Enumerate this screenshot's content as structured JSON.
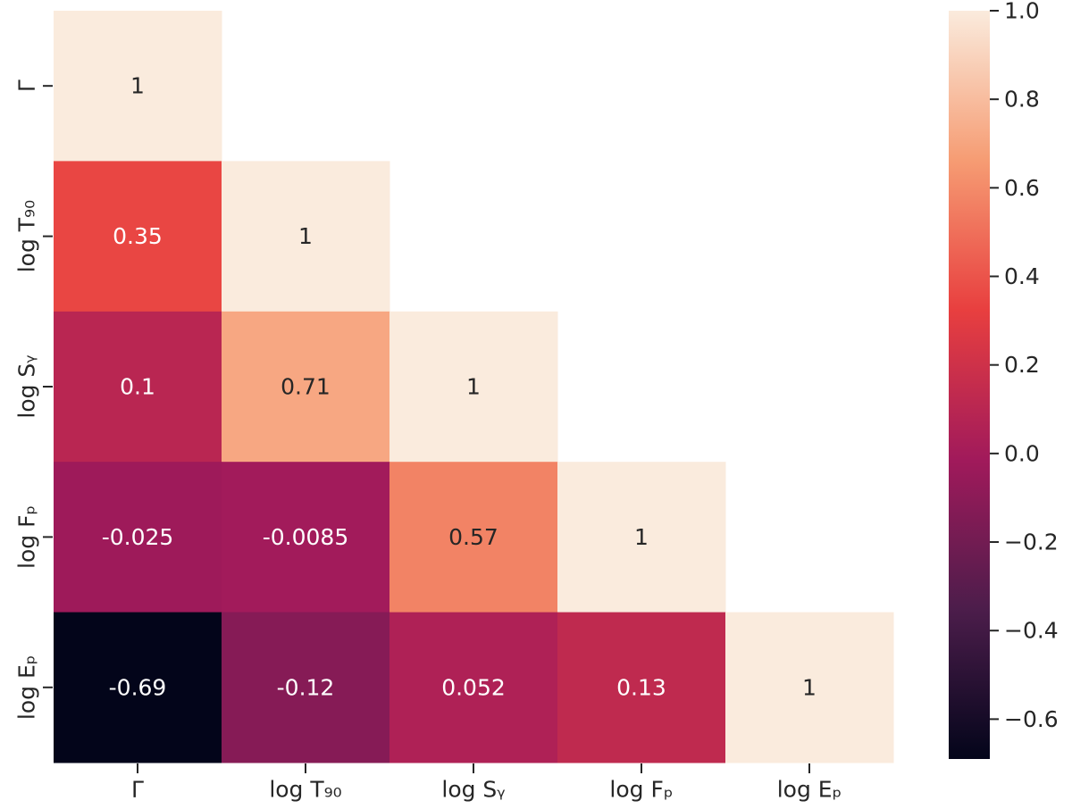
{
  "chart_data": {
    "type": "heatmap",
    "title": "",
    "row_labels": [
      "Γ",
      "log T₉₀",
      "log Sᵧ",
      "log Fₚ",
      "log Eₚ"
    ],
    "col_labels": [
      "Γ",
      "log T₉₀",
      "log Sᵧ",
      "log Fₚ",
      "log Eₚ"
    ],
    "masked": "upper-triangle",
    "cells": [
      {
        "row": 0,
        "col": 0,
        "value": 1,
        "label": "1"
      },
      {
        "row": 1,
        "col": 0,
        "value": 0.35,
        "label": "0.35"
      },
      {
        "row": 1,
        "col": 1,
        "value": 1,
        "label": "1"
      },
      {
        "row": 2,
        "col": 0,
        "value": 0.1,
        "label": "0.1"
      },
      {
        "row": 2,
        "col": 1,
        "value": 0.71,
        "label": "0.71"
      },
      {
        "row": 2,
        "col": 2,
        "value": 1,
        "label": "1"
      },
      {
        "row": 3,
        "col": 0,
        "value": -0.025,
        "label": "-0.025"
      },
      {
        "row": 3,
        "col": 1,
        "value": -0.0085,
        "label": "-0.0085"
      },
      {
        "row": 3,
        "col": 2,
        "value": 0.57,
        "label": "0.57"
      },
      {
        "row": 3,
        "col": 3,
        "value": 1,
        "label": "1"
      },
      {
        "row": 4,
        "col": 0,
        "value": -0.69,
        "label": "-0.69"
      },
      {
        "row": 4,
        "col": 1,
        "value": -0.12,
        "label": "-0.12"
      },
      {
        "row": 4,
        "col": 2,
        "value": 0.052,
        "label": "0.052"
      },
      {
        "row": 4,
        "col": 3,
        "value": 0.13,
        "label": "0.13"
      },
      {
        "row": 4,
        "col": 4,
        "value": 1,
        "label": "1"
      }
    ],
    "colorbar": {
      "range": [
        -0.69,
        1.0
      ],
      "ticks": [
        1.0,
        0.8,
        0.6,
        0.4,
        0.2,
        0.0,
        -0.2,
        -0.4,
        -0.6
      ],
      "tick_labels": [
        "1.0",
        "0.8",
        "0.6",
        "0.4",
        "0.2",
        "0.0",
        "−0.2",
        "−0.4",
        "−0.6"
      ],
      "colormap": "rocket",
      "colormap_stops": [
        "#03051a",
        "#4c1d4b",
        "#a11a5b",
        "#e83f3f",
        "#f69c73",
        "#faebdd"
      ]
    }
  }
}
